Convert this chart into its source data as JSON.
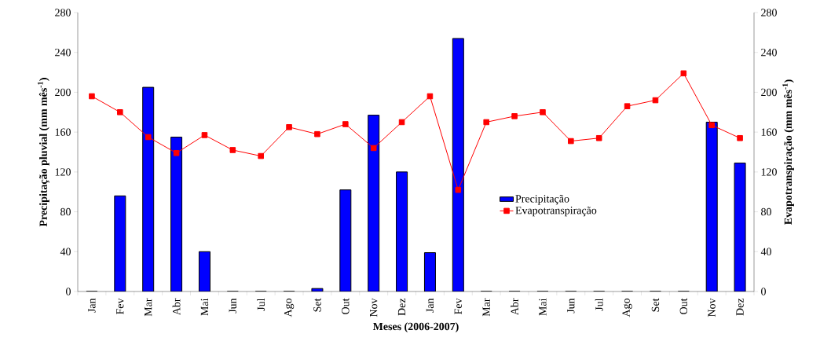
{
  "chart_data": {
    "type": "bar",
    "xlabel": "Meses (2006-2007)",
    "ylabel": "Precipitação pluvial (mm mês$^{-1}$)",
    "y2label": "Evapotranspiração (mm mês$^{-1}$)",
    "categories": [
      "Jan",
      "Fev",
      "Mar",
      "Abr",
      "Mai",
      "Jun",
      "Jul",
      "Ago",
      "Set",
      "Out",
      "Nov",
      "Dez",
      "Jan",
      "Fev",
      "Mar",
      "Abr",
      "Mai",
      "Jun",
      "Jul",
      "Ago",
      "Set",
      "Out",
      "Nov",
      "Dez"
    ],
    "series": [
      {
        "name": "Precipitação",
        "color": "#0000ff",
        "values": [
          0,
          96,
          205,
          155,
          40,
          0,
          0,
          0,
          3,
          102,
          177,
          120,
          39,
          254,
          0,
          0,
          0,
          0,
          0,
          0,
          0,
          0,
          170,
          129
        ]
      },
      {
        "name": "Evapotranspiração",
        "type": "line",
        "axis": "y2",
        "color": "#ff0000",
        "marker": "square",
        "values": [
          196,
          180,
          155,
          139,
          157,
          142,
          136,
          165,
          158,
          168,
          144,
          170,
          196,
          102,
          170,
          176,
          180,
          151,
          154,
          186,
          192,
          219,
          167,
          154
        ]
      }
    ],
    "ylim": [
      0,
      280
    ],
    "yticks": [
      0,
      40,
      80,
      120,
      160,
      200,
      240,
      280
    ],
    "y2lim": [
      0,
      280
    ],
    "y2ticks": [
      0,
      40,
      80,
      120,
      160,
      200,
      240,
      280
    ],
    "legend": "right",
    "grid": false
  }
}
